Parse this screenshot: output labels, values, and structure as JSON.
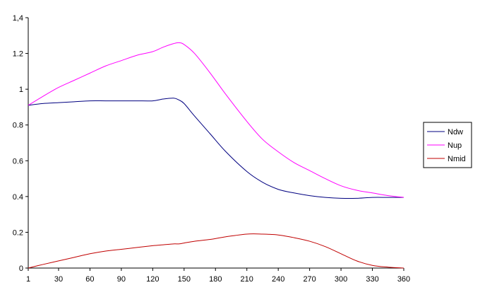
{
  "chart_data": {
    "type": "line",
    "title": "",
    "xlabel": "",
    "ylabel": "",
    "x_ticks": [
      "1",
      "30",
      "60",
      "90",
      "120",
      "150",
      "180",
      "210",
      "240",
      "270",
      "300",
      "330",
      "360"
    ],
    "y_ticks": [
      "0",
      "0.2",
      "0.4",
      "0.6",
      "0.8",
      "1",
      "1.2",
      "1,4"
    ],
    "xlim": [
      1,
      360
    ],
    "ylim": [
      0,
      1.4
    ],
    "grid": false,
    "legend_position": "right",
    "x": [
      1,
      15,
      30,
      45,
      60,
      75,
      90,
      105,
      120,
      130,
      140,
      145,
      150,
      160,
      175,
      190,
      210,
      225,
      240,
      255,
      270,
      285,
      300,
      315,
      330,
      345,
      360
    ],
    "series": [
      {
        "name": "Ndw",
        "color": "#000080",
        "values": [
          0.91,
          0.92,
          0.925,
          0.93,
          0.935,
          0.935,
          0.935,
          0.935,
          0.935,
          0.945,
          0.95,
          0.94,
          0.92,
          0.85,
          0.75,
          0.65,
          0.54,
          0.48,
          0.44,
          0.42,
          0.405,
          0.395,
          0.39,
          0.39,
          0.395,
          0.395,
          0.395
        ]
      },
      {
        "name": "Nup",
        "color": "#ff00ff",
        "values": [
          0.91,
          0.96,
          1.01,
          1.05,
          1.09,
          1.13,
          1.16,
          1.19,
          1.21,
          1.235,
          1.255,
          1.26,
          1.25,
          1.2,
          1.09,
          0.97,
          0.82,
          0.72,
          0.65,
          0.59,
          0.545,
          0.5,
          0.46,
          0.435,
          0.42,
          0.405,
          0.395
        ]
      },
      {
        "name": "Nmid",
        "color": "#c00000",
        "values": [
          0.0,
          0.02,
          0.04,
          0.06,
          0.08,
          0.095,
          0.105,
          0.115,
          0.125,
          0.13,
          0.135,
          0.135,
          0.14,
          0.15,
          0.16,
          0.175,
          0.19,
          0.19,
          0.185,
          0.17,
          0.15,
          0.12,
          0.08,
          0.04,
          0.015,
          0.005,
          0.0
        ]
      }
    ]
  }
}
